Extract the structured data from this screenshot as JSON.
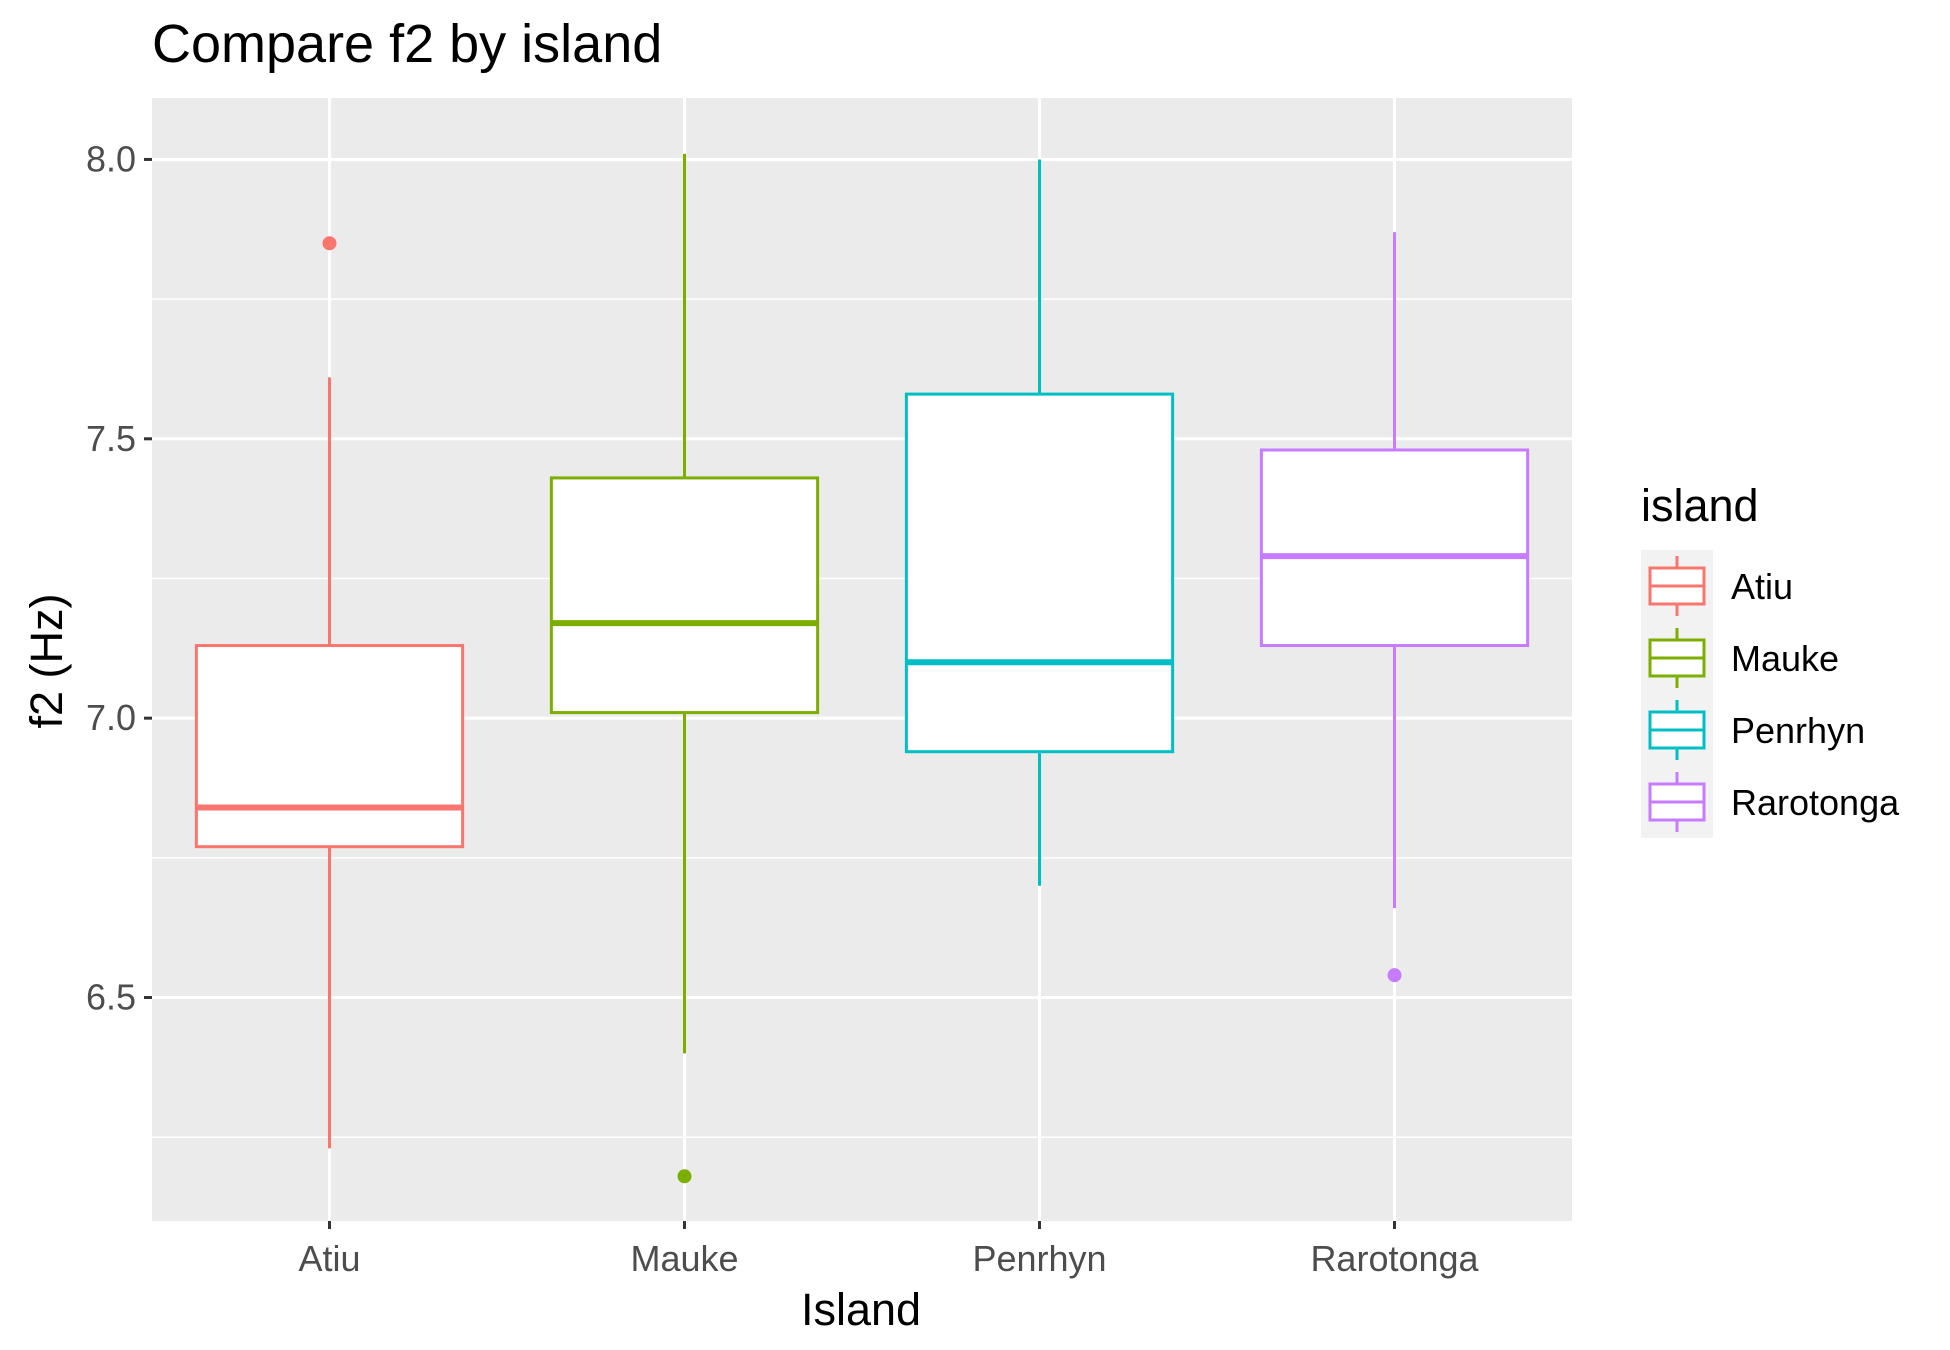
{
  "chart_data": {
    "type": "boxplot",
    "title": "Compare f2 by island",
    "xlabel": "Island",
    "ylabel": "f2 (Hz)",
    "categories": [
      "Atiu",
      "Mauke",
      "Penrhyn",
      "Rarotonga"
    ],
    "ylim": [
      6.1,
      8.11
    ],
    "yticks": [
      6.5,
      7.0,
      7.5,
      8.0
    ],
    "ytick_labels": [
      "6.5",
      "7.0",
      "7.5",
      "8.0"
    ],
    "grid": true,
    "legend": {
      "title": "island",
      "position": "right",
      "entries": [
        "Atiu",
        "Mauke",
        "Penrhyn",
        "Rarotonga"
      ]
    },
    "series": [
      {
        "name": "Atiu",
        "color": "#f8766d",
        "whisker_low": 6.23,
        "q1": 6.77,
        "median": 6.84,
        "q3": 7.13,
        "whisker_high": 7.61,
        "outliers": [
          7.85
        ]
      },
      {
        "name": "Mauke",
        "color": "#7cae00",
        "whisker_low": 6.4,
        "q1": 7.01,
        "median": 7.17,
        "q3": 7.43,
        "whisker_high": 8.01,
        "outliers": [
          6.18
        ]
      },
      {
        "name": "Penrhyn",
        "color": "#00bfc4",
        "whisker_low": 6.7,
        "q1": 6.94,
        "median": 7.1,
        "q3": 7.58,
        "whisker_high": 8.0,
        "outliers": []
      },
      {
        "name": "Rarotonga",
        "color": "#c77cff",
        "whisker_low": 6.66,
        "q1": 7.13,
        "median": 7.29,
        "q3": 7.48,
        "whisker_high": 7.87,
        "outliers": [
          6.54
        ]
      }
    ]
  }
}
